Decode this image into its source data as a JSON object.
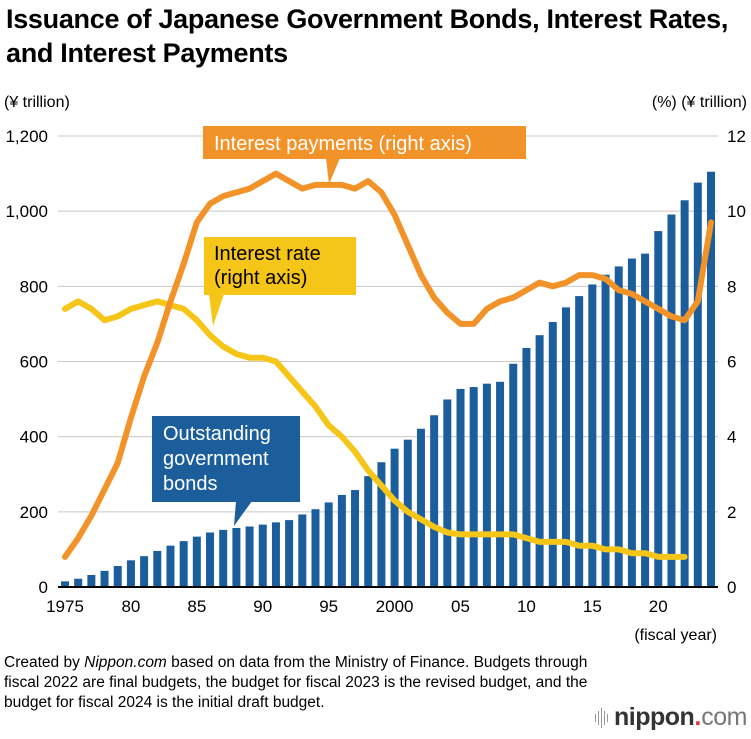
{
  "title": "Issuance of Japanese Government Bonds, Interest Rates, and Interest Payments",
  "footnote": {
    "prefix": "Created by ",
    "source_name": "Nippon.com",
    "rest": " based on data from the Ministry of Finance. Budgets through fiscal 2022 are final budgets, the budget for fiscal 2023 is the revised budget, and the budget for fiscal 2024 is the initial draft budget."
  },
  "logo": {
    "name": "nippon",
    "dot": ".",
    "tld": "com"
  },
  "colors": {
    "bars": "#1b5e9b",
    "payments": "#f2932a",
    "rate": "#f5c518",
    "grid": "#c8c8c8",
    "axis": "#000000"
  },
  "chart_data": {
    "type": "bar+line",
    "title": "Issuance of Japanese Government Bonds, Interest Rates, and Interest Payments",
    "xlabel": "(fiscal year)",
    "ylabel_left": "(¥ trillion)",
    "ylabel_right": "(%) (¥ trillion)",
    "ylim_left": [
      0,
      1200
    ],
    "ylim_right": [
      0,
      12
    ],
    "yticks_left": [
      "0",
      "200",
      "400",
      "600",
      "800",
      "1,000",
      "1,200"
    ],
    "yticks_right": [
      "0",
      "2",
      "4",
      "6",
      "8",
      "10",
      "12"
    ],
    "xtick_labels": [
      {
        "year": 1975,
        "label": "1975"
      },
      {
        "year": 1980,
        "label": "80"
      },
      {
        "year": 1985,
        "label": "85"
      },
      {
        "year": 1990,
        "label": "90"
      },
      {
        "year": 1995,
        "label": "95"
      },
      {
        "year": 2000,
        "label": "2000"
      },
      {
        "year": 2005,
        "label": "05"
      },
      {
        "year": 2010,
        "label": "10"
      },
      {
        "year": 2015,
        "label": "15"
      },
      {
        "year": 2020,
        "label": "20"
      }
    ],
    "grid": true,
    "x": [
      1975,
      1976,
      1977,
      1978,
      1979,
      1980,
      1981,
      1982,
      1983,
      1984,
      1985,
      1986,
      1987,
      1988,
      1989,
      1990,
      1991,
      1992,
      1993,
      1994,
      1995,
      1996,
      1997,
      1998,
      1999,
      2000,
      2001,
      2002,
      2003,
      2004,
      2005,
      2006,
      2007,
      2008,
      2009,
      2010,
      2011,
      2012,
      2013,
      2014,
      2015,
      2016,
      2017,
      2018,
      2019,
      2020,
      2021,
      2022,
      2023,
      2024
    ],
    "series": [
      {
        "name": "Outstanding government bonds",
        "type": "bar",
        "axis": "left",
        "values": [
          15,
          22,
          32,
          43,
          56,
          71,
          82,
          96,
          110,
          122,
          134,
          145,
          152,
          157,
          161,
          166,
          172,
          178,
          193,
          207,
          225,
          245,
          258,
          295,
          332,
          368,
          392,
          421,
          457,
          499,
          527,
          532,
          541,
          546,
          594,
          636,
          670,
          705,
          744,
          774,
          805,
          831,
          853,
          874,
          887,
          947,
          991,
          1029,
          1076,
          1105
        ]
      },
      {
        "name": "Interest payments (right axis)",
        "type": "line",
        "axis": "right",
        "values": [
          0.8,
          1.3,
          1.9,
          2.6,
          3.3,
          4.5,
          5.6,
          6.5,
          7.6,
          8.6,
          9.7,
          10.2,
          10.4,
          10.5,
          10.6,
          10.8,
          11.0,
          10.8,
          10.6,
          10.7,
          10.7,
          10.7,
          10.6,
          10.8,
          10.5,
          9.9,
          9.1,
          8.3,
          7.7,
          7.3,
          7.0,
          7.0,
          7.4,
          7.6,
          7.7,
          7.9,
          8.1,
          8.0,
          8.1,
          8.3,
          8.3,
          8.2,
          7.9,
          7.8,
          7.6,
          7.4,
          7.2,
          7.1,
          7.6,
          9.7
        ]
      },
      {
        "name": "Interest rate (right axis)",
        "type": "line",
        "axis": "right",
        "values": [
          7.4,
          7.6,
          7.4,
          7.1,
          7.2,
          7.4,
          7.5,
          7.6,
          7.5,
          7.4,
          7.1,
          6.7,
          6.4,
          6.2,
          6.1,
          6.1,
          6.0,
          5.6,
          5.2,
          4.8,
          4.3,
          4.0,
          3.6,
          3.1,
          2.7,
          2.3,
          2.0,
          1.8,
          1.6,
          1.45,
          1.4,
          1.4,
          1.4,
          1.4,
          1.4,
          1.3,
          1.2,
          1.2,
          1.2,
          1.1,
          1.1,
          1.0,
          1.0,
          0.9,
          0.9,
          0.8,
          0.8,
          0.8,
          null,
          null
        ]
      }
    ],
    "annotations": {
      "payments": "Interest payments (right axis)",
      "rate_line1": "Interest rate",
      "rate_line2": "(right axis)",
      "bonds_line1": "Outstanding",
      "bonds_line2": "government",
      "bonds_line3": "bonds"
    }
  }
}
